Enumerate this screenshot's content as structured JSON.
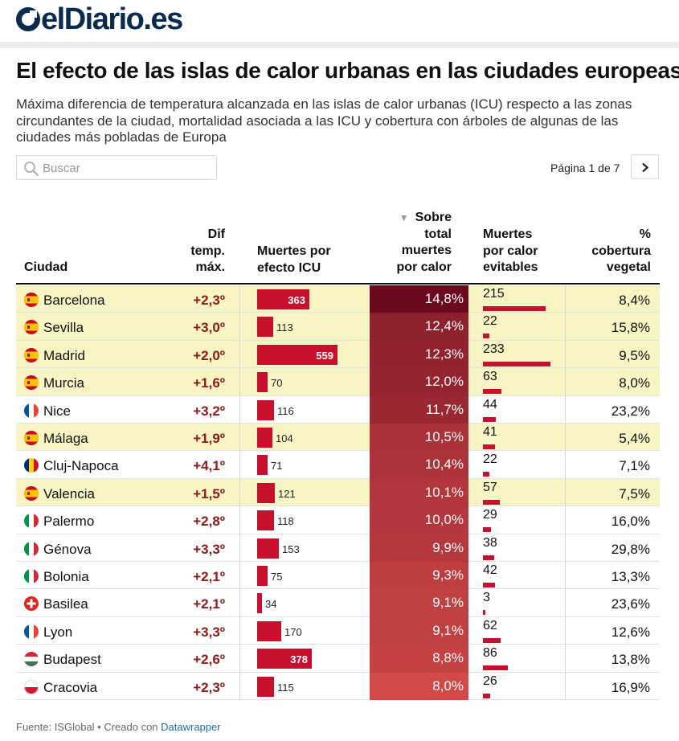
{
  "brand": {
    "logo_text": "elDiario.es"
  },
  "title": "El efecto de las islas de calor urbanas en las ciudades europeas",
  "subtitle": "Máxima diferencia de temperatura alcanzada en las islas de calor urbanas (ICU) respecto a las zonas circundantes de la ciudad, mortalidad asociada a las ICU y cobertura con árboles de algunas de las ciudades más pobladas de Europa",
  "search": {
    "placeholder": "Buscar"
  },
  "pager": {
    "text": "Página 1 de 7"
  },
  "columns": {
    "city": "Ciudad",
    "dif": [
      "Dif",
      "temp.",
      "máx."
    ],
    "deaths": [
      "Muertes por",
      "efecto ICU"
    ],
    "share": [
      "Sobre",
      "total",
      "muertes",
      "por calor"
    ],
    "sort_indicator": "▼",
    "avoidable": [
      "Muertes",
      "por calor",
      "evitables"
    ],
    "coverage": [
      "%",
      "cobertura",
      "vegetal"
    ]
  },
  "colors": {
    "accent": "#c8102e",
    "highlight": "#f8f4c4",
    "difText": "#8c1a1a",
    "heat_dark": "#6b0a1f",
    "heat_light": "#d14a48"
  },
  "chart_data": {
    "type": "table",
    "title": "El efecto de las islas de calor urbanas en las ciudades europeas",
    "sorted_by": "Sobre total muertes por calor",
    "max_icu_deaths": 559,
    "max_avoidable": 233,
    "rows": [
      {
        "flag": "spain",
        "city": "Barcelona",
        "dif": "+2,3º",
        "deaths": 363,
        "pct_text": "14,8%",
        "pct": 14.8,
        "avoid": 215,
        "cov": "8,4%",
        "highlight": true
      },
      {
        "flag": "spain",
        "city": "Sevilla",
        "dif": "+3,0º",
        "deaths": 113,
        "pct_text": "12,4%",
        "pct": 12.4,
        "avoid": 22,
        "cov": "15,8%",
        "highlight": true
      },
      {
        "flag": "spain",
        "city": "Madrid",
        "dif": "+2,0º",
        "deaths": 559,
        "pct_text": "12,3%",
        "pct": 12.3,
        "avoid": 233,
        "cov": "9,5%",
        "highlight": true
      },
      {
        "flag": "spain",
        "city": "Murcia",
        "dif": "+1,6º",
        "deaths": 70,
        "pct_text": "12,0%",
        "pct": 12.0,
        "avoid": 63,
        "cov": "8,0%",
        "highlight": true
      },
      {
        "flag": "france",
        "city": "Nice",
        "dif": "+3,2º",
        "deaths": 116,
        "pct_text": "11,7%",
        "pct": 11.7,
        "avoid": 44,
        "cov": "23,2%",
        "highlight": false
      },
      {
        "flag": "spain",
        "city": "Málaga",
        "dif": "+1,9º",
        "deaths": 104,
        "pct_text": "10,5%",
        "pct": 10.5,
        "avoid": 41,
        "cov": "5,4%",
        "highlight": true
      },
      {
        "flag": "romania",
        "city": "Cluj-Napoca",
        "dif": "+4,1º",
        "deaths": 71,
        "pct_text": "10,4%",
        "pct": 10.4,
        "avoid": 22,
        "cov": "7,1%",
        "highlight": false
      },
      {
        "flag": "spain",
        "city": "Valencia",
        "dif": "+1,5º",
        "deaths": 121,
        "pct_text": "10,1%",
        "pct": 10.1,
        "avoid": 57,
        "cov": "7,5%",
        "highlight": true
      },
      {
        "flag": "italy",
        "city": "Palermo",
        "dif": "+2,8º",
        "deaths": 118,
        "pct_text": "10,0%",
        "pct": 10.0,
        "avoid": 29,
        "cov": "16,0%",
        "highlight": false
      },
      {
        "flag": "italy",
        "city": "Génova",
        "dif": "+3,3º",
        "deaths": 153,
        "pct_text": "9,9%",
        "pct": 9.9,
        "avoid": 38,
        "cov": "29,8%",
        "highlight": false
      },
      {
        "flag": "italy",
        "city": "Bolonia",
        "dif": "+2,1º",
        "deaths": 75,
        "pct_text": "9,3%",
        "pct": 9.3,
        "avoid": 42,
        "cov": "13,3%",
        "highlight": false
      },
      {
        "flag": "switzerland",
        "city": "Basilea",
        "dif": "+2,1º",
        "deaths": 34,
        "pct_text": "9,1%",
        "pct": 9.1,
        "avoid": 3,
        "cov": "23,6%",
        "highlight": false
      },
      {
        "flag": "france",
        "city": "Lyon",
        "dif": "+3,3º",
        "deaths": 170,
        "pct_text": "9,1%",
        "pct": 9.1,
        "avoid": 62,
        "cov": "12,6%",
        "highlight": false
      },
      {
        "flag": "hungary",
        "city": "Budapest",
        "dif": "+2,6º",
        "deaths": 378,
        "pct_text": "8,8%",
        "pct": 8.8,
        "avoid": 86,
        "cov": "13,8%",
        "highlight": false
      },
      {
        "flag": "poland",
        "city": "Cracovia",
        "dif": "+2,3º",
        "deaths": 115,
        "pct_text": "8,0%",
        "pct": 8.0,
        "avoid": 26,
        "cov": "16,9%",
        "highlight": false
      }
    ]
  },
  "footer": {
    "source": "Fuente: ISGlobal • Creado con ",
    "tool": "Datawrapper"
  }
}
